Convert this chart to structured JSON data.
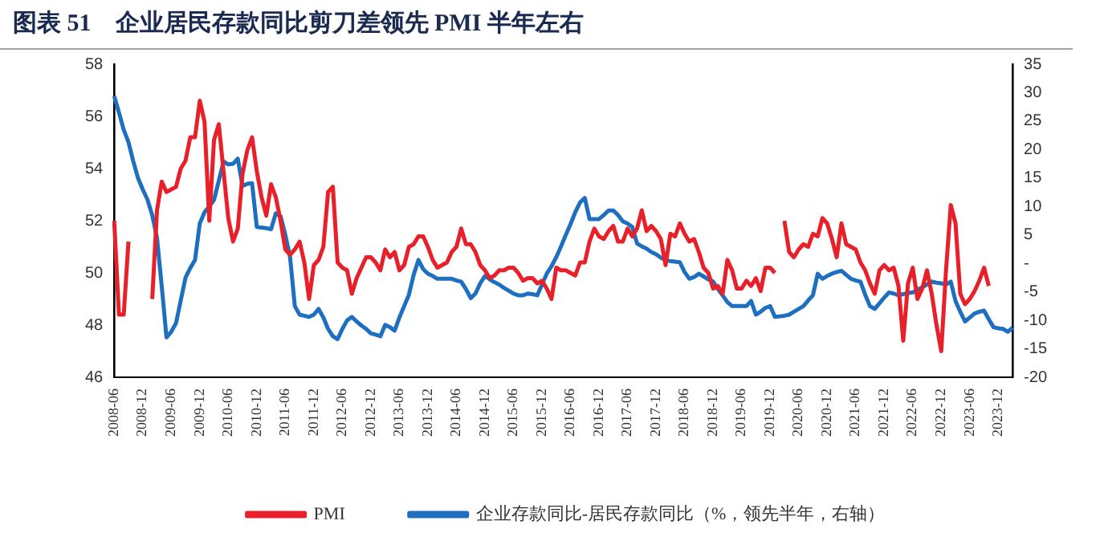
{
  "chart_data": {
    "type": "line",
    "title": "图表 51　企业居民存款同比剪刀差领先 PMI 半年左右",
    "categories": [
      "2008-06",
      null,
      null,
      null,
      null,
      null,
      "2008-12",
      null,
      null,
      null,
      null,
      null,
      "2009-06",
      null,
      null,
      null,
      null,
      null,
      "2009-12",
      null,
      null,
      null,
      null,
      null,
      "2010-06",
      null,
      null,
      null,
      null,
      null,
      "2010-12",
      null,
      null,
      null,
      null,
      null,
      "2011-06",
      null,
      null,
      null,
      null,
      null,
      "2011-12",
      null,
      null,
      null,
      null,
      null,
      "2012-06",
      null,
      null,
      null,
      null,
      null,
      "2012-12",
      null,
      null,
      null,
      null,
      null,
      "2013-06",
      null,
      null,
      null,
      null,
      null,
      "2013-12",
      null,
      null,
      null,
      null,
      null,
      "2014-06",
      null,
      null,
      null,
      null,
      null,
      "2014-12",
      null,
      null,
      null,
      null,
      null,
      "2015-06",
      null,
      null,
      null,
      null,
      null,
      "2015-12",
      null,
      null,
      null,
      null,
      null,
      "2016-06",
      null,
      null,
      null,
      null,
      null,
      "2016-12",
      null,
      null,
      null,
      null,
      null,
      "2017-06",
      null,
      null,
      null,
      null,
      null,
      "2017-12",
      null,
      null,
      null,
      null,
      null,
      "2018-06",
      null,
      null,
      null,
      null,
      null,
      "2018-12",
      null,
      null,
      null,
      null,
      null,
      "2019-06",
      null,
      null,
      null,
      null,
      null,
      "2019-12",
      null,
      null,
      null,
      null,
      null,
      "2020-06",
      null,
      null,
      null,
      null,
      null,
      "2020-12",
      null,
      null,
      null,
      null,
      null,
      "2021-06",
      null,
      null,
      null,
      null,
      null,
      "2021-12",
      null,
      null,
      null,
      null,
      null,
      "2022-06",
      null,
      null,
      null,
      null,
      null,
      "2022-12",
      null,
      null,
      null,
      null,
      null,
      "2023-06",
      null,
      null,
      null,
      null,
      null,
      "2023-12",
      null,
      null,
      null
    ],
    "series": [
      {
        "name": "PMI",
        "color": "#e8202a",
        "values": [
          52.0,
          48.4,
          48.4,
          51.2,
          null,
          null,
          null,
          null,
          49.0,
          52.4,
          53.5,
          53.1,
          53.2,
          53.3,
          54.0,
          54.3,
          55.2,
          55.2,
          56.6,
          55.8,
          52.0,
          55.1,
          55.7,
          53.9,
          52.1,
          51.2,
          51.7,
          53.8,
          54.7,
          55.2,
          53.9,
          52.9,
          52.2,
          53.4,
          52.9,
          52.0,
          50.9,
          50.7,
          50.9,
          51.2,
          50.4,
          49.0,
          50.3,
          50.5,
          51.0,
          53.1,
          53.3,
          50.4,
          50.2,
          50.1,
          49.2,
          49.8,
          50.2,
          50.6,
          50.6,
          50.4,
          50.1,
          50.9,
          50.6,
          50.8,
          50.1,
          50.3,
          51.0,
          51.1,
          51.4,
          51.4,
          51.0,
          50.5,
          50.2,
          50.3,
          50.4,
          50.8,
          51.0,
          51.7,
          51.1,
          51.1,
          50.8,
          50.3,
          50.1,
          49.8,
          49.9,
          50.1,
          50.1,
          50.2,
          50.2,
          50.0,
          49.7,
          49.8,
          49.8,
          49.6,
          49.7,
          49.4,
          49.0,
          50.2,
          50.1,
          50.1,
          50.0,
          49.9,
          50.4,
          50.4,
          51.2,
          51.7,
          51.4,
          51.3,
          51.6,
          51.8,
          51.2,
          51.2,
          51.7,
          51.4,
          51.7,
          52.4,
          51.6,
          51.8,
          51.6,
          51.3,
          50.3,
          51.5,
          51.4,
          51.9,
          51.5,
          51.2,
          51.3,
          50.8,
          50.2,
          50.0,
          49.4,
          49.5,
          49.2,
          50.5,
          50.1,
          49.4,
          49.4,
          49.7,
          49.5,
          49.8,
          49.3,
          50.2,
          50.2,
          50.0,
          null,
          52.0,
          50.8,
          50.6,
          50.9,
          51.1,
          51.0,
          51.5,
          51.4,
          52.1,
          51.9,
          51.3,
          50.6,
          51.9,
          51.1,
          51.0,
          50.9,
          50.4,
          50.1,
          49.6,
          49.2,
          50.1,
          50.3,
          50.1,
          50.2,
          49.5,
          47.4,
          49.6,
          50.2,
          49.0,
          49.4,
          50.1,
          49.2,
          48.0,
          47.0,
          50.1,
          52.6,
          51.9,
          49.2,
          48.8,
          49.0,
          49.3,
          49.7,
          50.2,
          49.5,
          null,
          null,
          null,
          null,
          null
        ]
      },
      {
        "name": "企业存款同比-居民存款同比（%，领先半年，右轴）",
        "color": "#1f6fc0",
        "axis": "y2",
        "values": [
          29.4,
          26.5,
          23.5,
          21.3,
          18,
          15,
          13,
          11.2,
          8.5,
          4.5,
          -4,
          -13,
          -12,
          -10.5,
          -6.5,
          -2.5,
          -0.8,
          0.6,
          7,
          9,
          10,
          11.2,
          14.5,
          17.9,
          17.4,
          17.5,
          18.4,
          13.6,
          14,
          14.1,
          6.4,
          6.3,
          6.2,
          6,
          8.8,
          8.3,
          5,
          1.1,
          -7.5,
          -9,
          -9.2,
          -9.4,
          -9,
          -8,
          -9.5,
          -11.5,
          -12.8,
          -13.3,
          -11.5,
          -10,
          -9.4,
          -10.2,
          -10.9,
          -11.5,
          -12.3,
          -12.5,
          -12.8,
          -10.8,
          -11.2,
          -11.8,
          -9.5,
          -7.5,
          -5.5,
          -2,
          0.6,
          -1,
          -1.8,
          -2.2,
          -2.7,
          -2.7,
          -2.7,
          -2.7,
          -3,
          -3.2,
          -4.5,
          -6.1,
          -5.3,
          -3.5,
          -2.2,
          -2.8,
          -3.3,
          -3.7,
          -4.3,
          -4.8,
          -5.3,
          -5.6,
          -5.6,
          -5.3,
          -5.4,
          -5.6,
          -3.7,
          -1.8,
          -0.5,
          1.1,
          3,
          5,
          6.9,
          9,
          10.7,
          11.5,
          7.8,
          7.8,
          7.8,
          8.5,
          9.3,
          9.3,
          8.5,
          7.4,
          7,
          6.4,
          3.5,
          3,
          2.6,
          2,
          1.6,
          1,
          0.6,
          0.4,
          0.3,
          0.2,
          -1.5,
          -2.7,
          -2.4,
          -1.8,
          -2.3,
          -2.8,
          -3.2,
          -4.5,
          -5.6,
          -6.8,
          -7.5,
          -7.5,
          -7.5,
          -7.5,
          -6.6,
          -9,
          -8.5,
          -7.8,
          -7.5,
          -9.4,
          -9.3,
          -9.2,
          -9,
          -8.5,
          -8,
          -7.5,
          -6.5,
          -5.6,
          -1.8,
          -2.7,
          -2.2,
          -1.8,
          -1.5,
          -1.3,
          -2,
          -2.7,
          -3,
          -3.2,
          -5.5,
          -7.5,
          -8,
          -7,
          -6,
          -5.1,
          -5.3,
          -5.6,
          -5.4,
          -5.2,
          -5.1,
          -4.6,
          -4.2,
          -3.7,
          -3.2,
          -3.4,
          -3.5,
          -3.7,
          -3.2,
          -6.6,
          -8.5,
          -10.2,
          -9.5,
          -8.8,
          -8.5,
          -8.3,
          -9.8,
          -11.2,
          -11.4,
          -11.5,
          -12,
          -11.3
        ]
      }
    ],
    "ylim": [
      46,
      58
    ],
    "yticks": [
      46,
      48,
      50,
      52,
      54,
      56,
      58
    ],
    "y2lim": [
      -20,
      35
    ],
    "y2ticks": [
      -20,
      -15,
      -10,
      -5,
      {
        "value": 0,
        "label": "-"
      },
      5,
      10,
      15,
      20,
      25,
      30,
      35
    ],
    "grid": false,
    "legend": "bottom",
    "marker": "none",
    "line_style": "solid"
  }
}
